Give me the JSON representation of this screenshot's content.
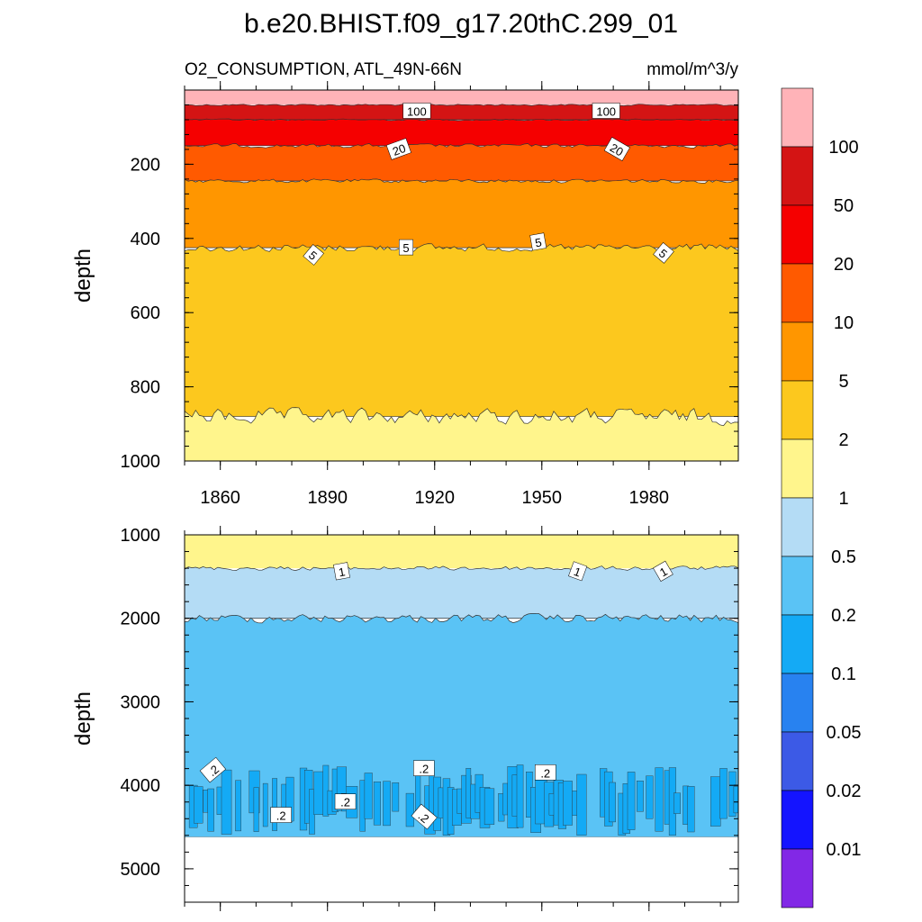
{
  "figure": {
    "title": "b.e20.BHIST.f09_g17.20thC.299_01",
    "variable_label": "O2_CONSUMPTION, ATL_49N-66N",
    "units_label": "mmol/m^3/y"
  },
  "chart_data": [
    {
      "type": "heatmap",
      "panel": "top",
      "xlabel": "",
      "ylabel": "depth",
      "xlim": [
        1850,
        2005
      ],
      "ylim": [
        1000,
        0
      ],
      "x_ticks": [
        "1860",
        "1890",
        "1920",
        "1950",
        "1980"
      ],
      "y_ticks": [
        "200",
        "400",
        "600",
        "800",
        "1000"
      ],
      "contour_levels": [
        1,
        2,
        5,
        10,
        20,
        50,
        100
      ],
      "bands": [
        {
          "range": ">100",
          "upper_depth": 0,
          "lower_depth": 40,
          "color": "#FFB3B8"
        },
        {
          "range": "50-100",
          "upper_depth": 40,
          "lower_depth": 80,
          "color": "#D41414"
        },
        {
          "range": "20-50",
          "upper_depth": 80,
          "lower_depth": 150,
          "color": "#F50000"
        },
        {
          "range": "10-20",
          "upper_depth": 150,
          "lower_depth": 245,
          "color": "#FF5A00"
        },
        {
          "range": "5-10",
          "upper_depth": 245,
          "lower_depth": 425,
          "color": "#FF9600"
        },
        {
          "range": "2-5",
          "upper_depth": 425,
          "lower_depth": 880,
          "color": "#FCC81E"
        },
        {
          "range": "1-2",
          "upper_depth": 880,
          "lower_depth": 1000,
          "color": "#FFF58C"
        }
      ],
      "contour_labels": [
        "100",
        "100",
        "20",
        "20",
        "5",
        "5",
        "5",
        "5"
      ]
    },
    {
      "type": "heatmap",
      "panel": "bottom",
      "xlabel": "",
      "ylabel": "depth",
      "xlim": [
        1850,
        2005
      ],
      "ylim": [
        5400,
        1000
      ],
      "y_ticks": [
        "1000",
        "2000",
        "3000",
        "4000",
        "5000"
      ],
      "contour_levels": [
        0.2,
        0.5,
        1
      ],
      "bands": [
        {
          "range": "1-2",
          "upper_depth": 1000,
          "lower_depth": 1400,
          "color": "#FFF58C"
        },
        {
          "range": "0.5-1",
          "upper_depth": 1400,
          "lower_depth": 2000,
          "color": "#B4DCF5"
        },
        {
          "range": "0.2-0.5",
          "upper_depth": 2000,
          "lower_depth": 4620,
          "color": "#5AC3F5"
        },
        {
          "range": "0.1-0.2",
          "upper_depth": 3750,
          "lower_depth": 4600,
          "color": "#14AAF5",
          "note": "patchy"
        }
      ],
      "data_bottom_depth": 4620,
      "contour_labels": [
        "1",
        "1",
        "1",
        ".2",
        ".2",
        ".2",
        ".2",
        ".2",
        ".2"
      ]
    }
  ],
  "colorbar": {
    "labels": [
      "100",
      "50",
      "20",
      "10",
      "5",
      "2",
      "1",
      "0.5",
      "0.2",
      "0.1",
      "0.05",
      "0.02",
      "0.01"
    ],
    "colors": [
      "#FFB3B8",
      "#D41414",
      "#F50000",
      "#FF5A00",
      "#FF9600",
      "#FCC81E",
      "#FFF58C",
      "#B4DCF5",
      "#5AC3F5",
      "#14AAF5",
      "#2882F0",
      "#3C5AE6",
      "#1414FF",
      "#8228E6"
    ]
  }
}
